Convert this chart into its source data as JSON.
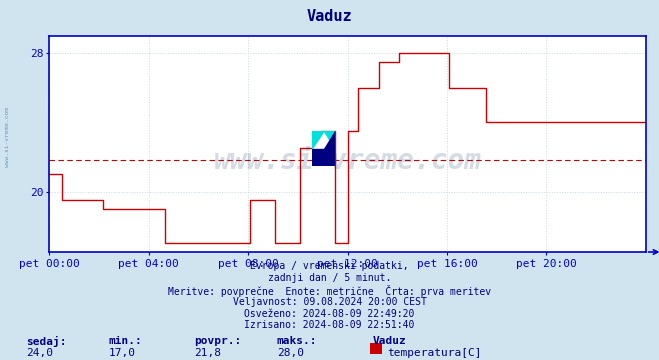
{
  "title": "Vaduz",
  "title_color": "#000080",
  "outer_bg_color": "#d0e4f0",
  "plot_bg_color": "#ffffff",
  "line_color": "#cc0000",
  "avg_line_color": "#cc0000",
  "avg_value": 21.8,
  "x_min": 0,
  "x_max": 288,
  "y_min": 16.5,
  "y_max": 29.0,
  "yticks": [
    20,
    28
  ],
  "tick_color": "#000080",
  "grid_color": "#c8d8e8",
  "axis_color": "#0000cc",
  "watermark_text": "www.si-vreme.com",
  "watermark_color": "#1a3a6a",
  "watermark_alpha": 0.18,
  "bottom_texts": [
    "Evropa / vremenski podatki,",
    "zadnji dan / 5 minut.",
    "Meritve: povprečne  Enote: metrične  Črta: prva meritev",
    "Veljavnost: 09.08.2024 20:00 CEST",
    "Osveženo: 2024-08-09 22:49:20",
    "Izrisano: 2024-08-09 22:51:40"
  ],
  "bottom_text_color": "#000080",
  "footer_labels": [
    "sedaj:",
    "min.:",
    "povpr.:",
    "maks.:"
  ],
  "footer_values": [
    "24,0",
    "17,0",
    "21,8",
    "28,0"
  ],
  "legend_station": "Vaduz",
  "legend_series": "temperatura[C]",
  "legend_color": "#cc0000",
  "x_tick_positions": [
    0,
    48,
    96,
    144,
    192,
    240
  ],
  "x_tick_labels": [
    "pet 00:00",
    "pet 04:00",
    "pet 08:00",
    "pet 12:00",
    "pet 16:00",
    "pet 20:00"
  ],
  "sidebar_text": "www.si-vreme.com",
  "temperature_data": [
    [
      0,
      21.0
    ],
    [
      5,
      21.0
    ],
    [
      6,
      19.5
    ],
    [
      25,
      19.5
    ],
    [
      26,
      19.0
    ],
    [
      55,
      19.0
    ],
    [
      56,
      17.0
    ],
    [
      96,
      17.0
    ],
    [
      97,
      19.5
    ],
    [
      108,
      19.5
    ],
    [
      109,
      17.0
    ],
    [
      120,
      17.0
    ],
    [
      121,
      22.5
    ],
    [
      130,
      22.5
    ],
    [
      131,
      23.5
    ],
    [
      137,
      23.5
    ],
    [
      138,
      17.0
    ],
    [
      143,
      17.0
    ],
    [
      144,
      23.5
    ],
    [
      148,
      23.5
    ],
    [
      149,
      26.0
    ],
    [
      158,
      26.0
    ],
    [
      159,
      27.5
    ],
    [
      168,
      27.5
    ],
    [
      169,
      28.0
    ],
    [
      192,
      28.0
    ],
    [
      193,
      26.0
    ],
    [
      210,
      26.0
    ],
    [
      211,
      24.0
    ],
    [
      288,
      24.0
    ]
  ]
}
